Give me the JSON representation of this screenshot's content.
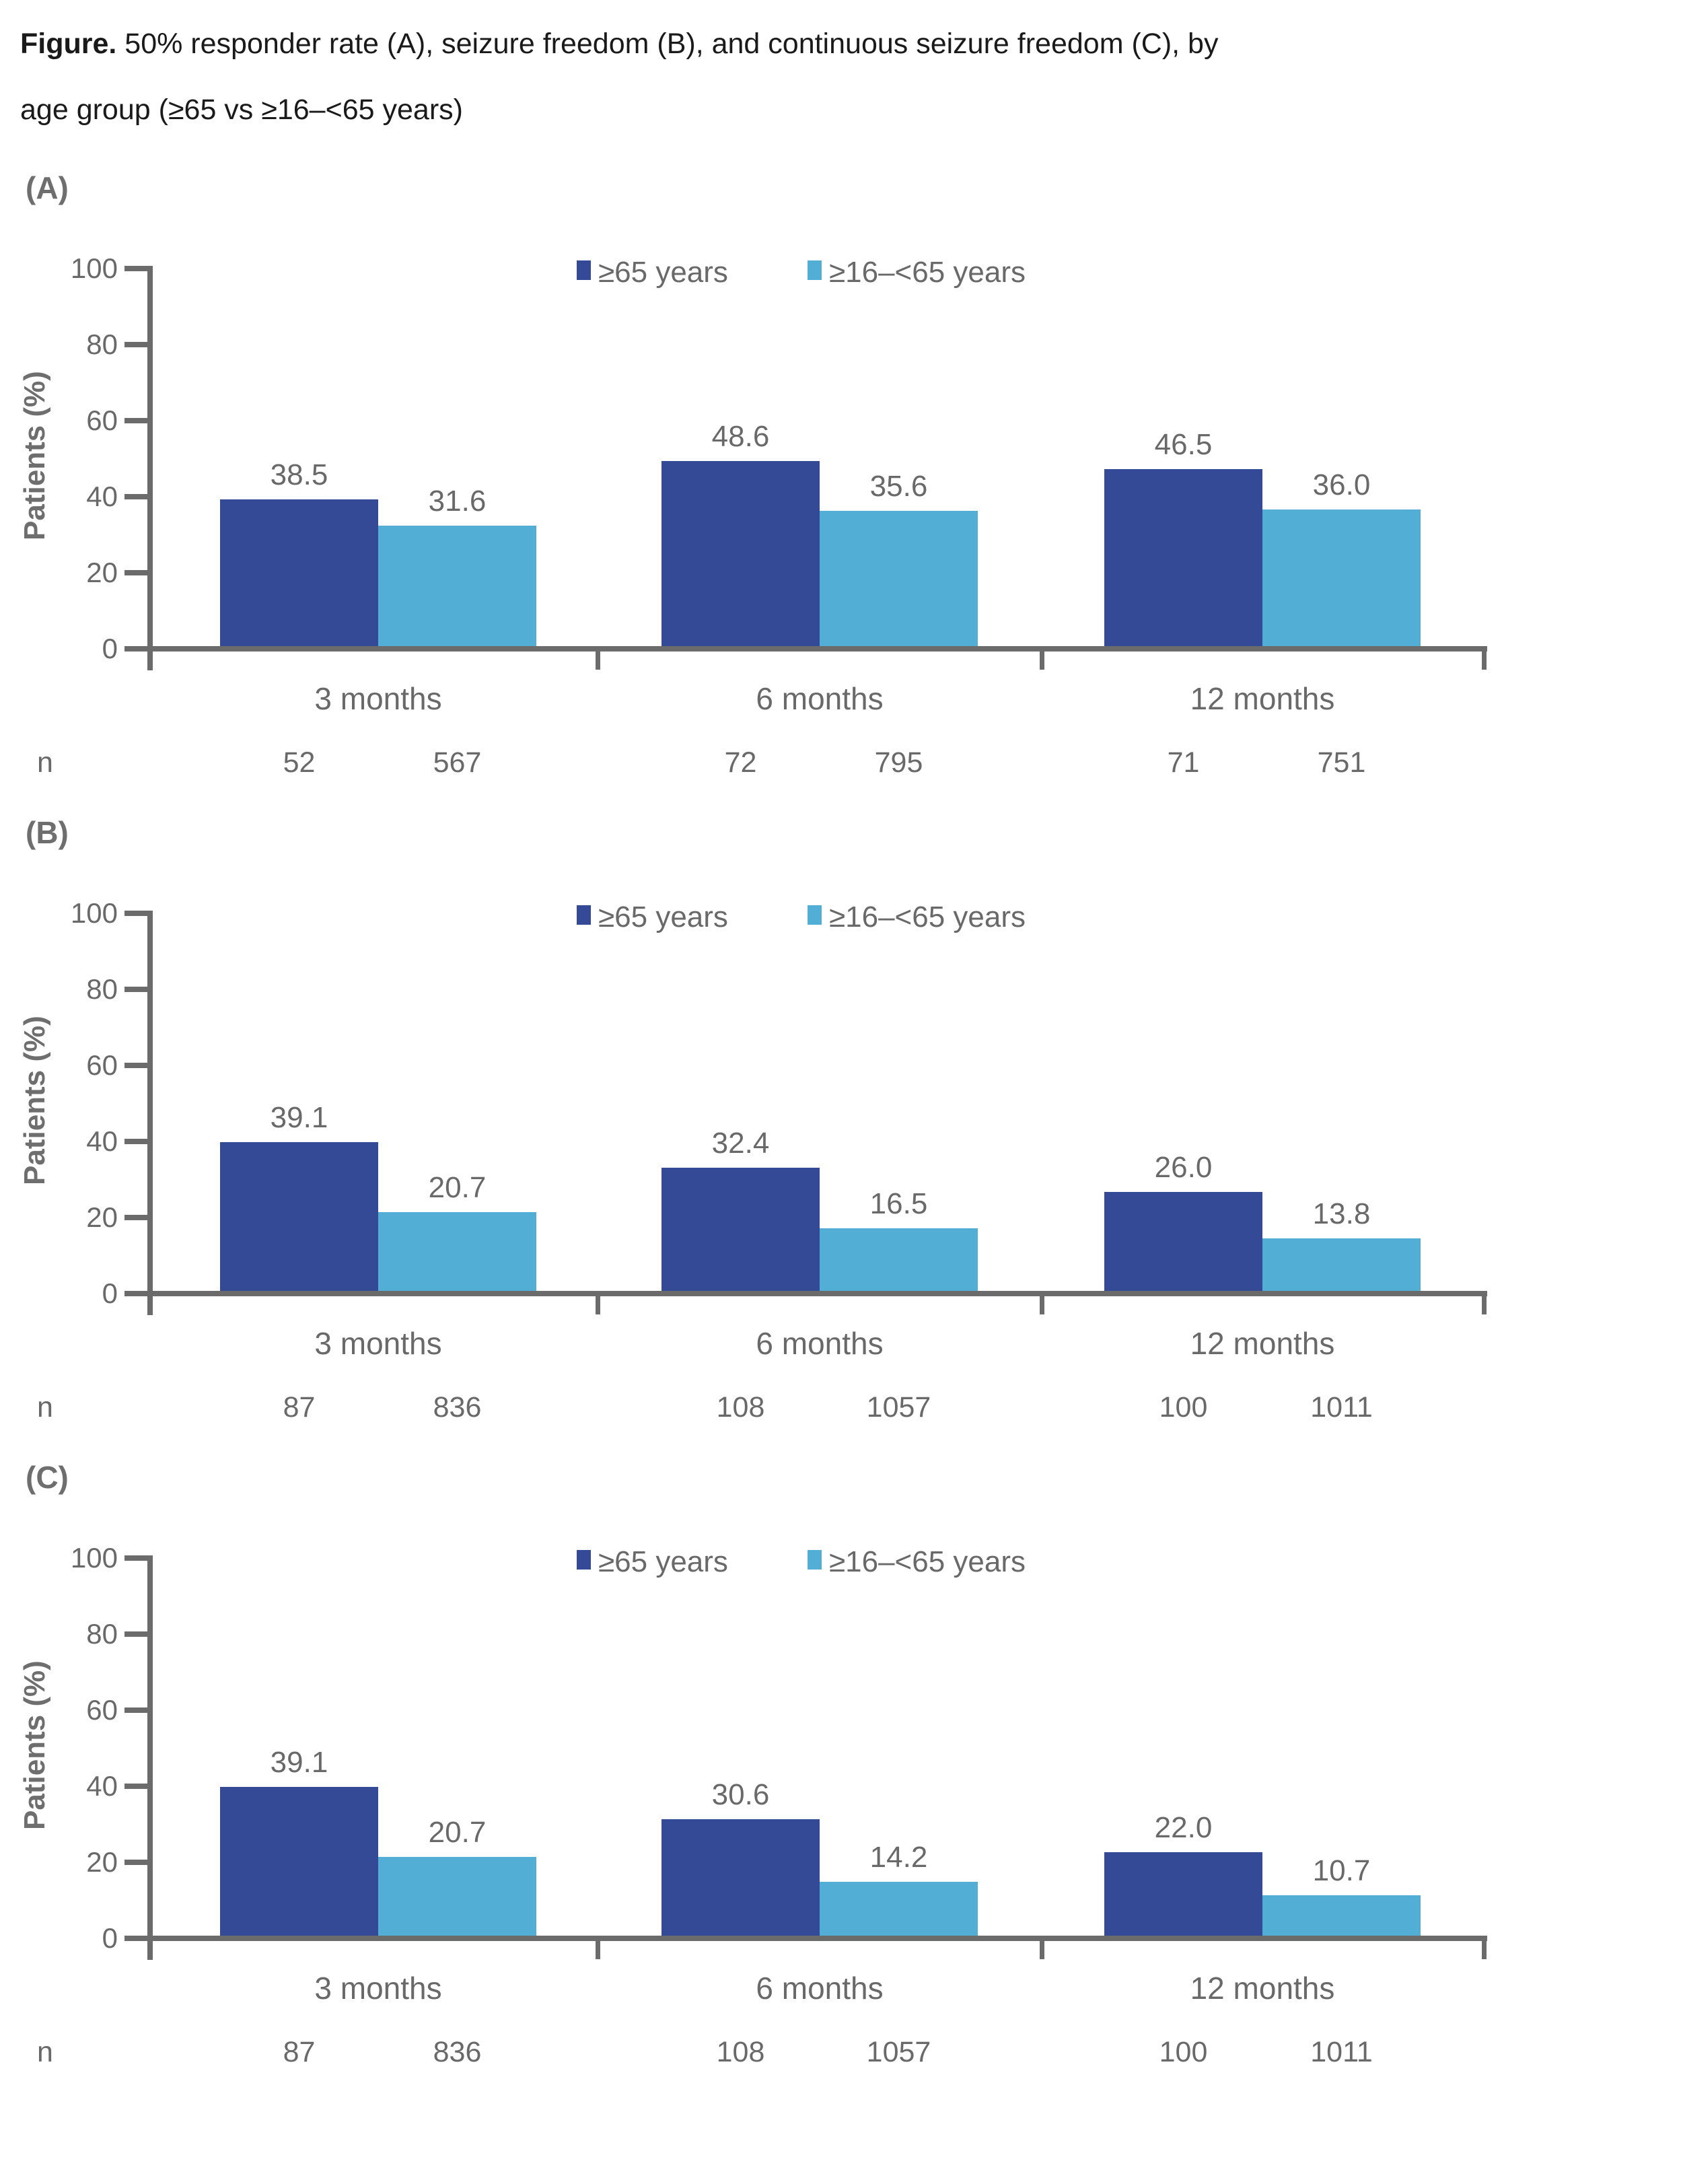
{
  "caption": {
    "prefix": "Figure.",
    "line1_rest": " 50% responder rate (A), seizure freedom (B), and continuous seizure freedom (C), by",
    "line2": "age group (≥65 vs ≥16–<65 years)"
  },
  "colors": {
    "age_ge65": "#344A96",
    "age_16_to_65": "#52AED4",
    "text_gray": "#696969",
    "axis_gray": "#6B6B6B"
  },
  "axis": {
    "ylabel": "Patients (%)",
    "n_row_label": "n"
  },
  "legend": {
    "items": [
      {
        "label": "≥65 years",
        "color": "#344A96"
      },
      {
        "label": "≥16–<65 years",
        "color": "#52AED4"
      }
    ]
  },
  "chart_data": [
    {
      "type": "bar",
      "panel_label": "(A)",
      "title": "50% responder rate",
      "categories": [
        "3 months",
        "6 months",
        "12 months"
      ],
      "ylabel": "Patients (%)",
      "ylim": [
        0,
        100
      ],
      "yticks": [
        0,
        20,
        40,
        60,
        80,
        100
      ],
      "grid": false,
      "legend_position": "top",
      "series": [
        {
          "name": "≥65 years",
          "color": "#344A96",
          "values": [
            38.5,
            48.6,
            46.5
          ],
          "value_labels": [
            "38.5",
            "48.6",
            "46.5"
          ],
          "n": [
            "52",
            "72",
            "71"
          ]
        },
        {
          "name": "≥16–<65 years",
          "color": "#52AED4",
          "values": [
            31.6,
            35.6,
            36.0
          ],
          "value_labels": [
            "31.6",
            "35.6",
            "36.0"
          ],
          "n": [
            "567",
            "795",
            "751"
          ]
        }
      ]
    },
    {
      "type": "bar",
      "panel_label": "(B)",
      "title": "seizure freedom",
      "categories": [
        "3 months",
        "6 months",
        "12 months"
      ],
      "ylabel": "Patients (%)",
      "ylim": [
        0,
        100
      ],
      "yticks": [
        0,
        20,
        40,
        60,
        80,
        100
      ],
      "grid": false,
      "legend_position": "top",
      "series": [
        {
          "name": "≥65 years",
          "color": "#344A96",
          "values": [
            39.1,
            32.4,
            26.0
          ],
          "value_labels": [
            "39.1",
            "32.4",
            "26.0"
          ],
          "n": [
            "87",
            "108",
            "100"
          ]
        },
        {
          "name": "≥16–<65 years",
          "color": "#52AED4",
          "values": [
            20.7,
            16.5,
            13.8
          ],
          "value_labels": [
            "20.7",
            "16.5",
            "13.8"
          ],
          "n": [
            "836",
            "1057",
            "1011"
          ]
        }
      ]
    },
    {
      "type": "bar",
      "panel_label": "(C)",
      "title": "continuous seizure freedom",
      "categories": [
        "3 months",
        "6 months",
        "12 months"
      ],
      "ylabel": "Patients (%)",
      "ylim": [
        0,
        100
      ],
      "yticks": [
        0,
        20,
        40,
        60,
        80,
        100
      ],
      "grid": false,
      "legend_position": "top",
      "series": [
        {
          "name": "≥65 years",
          "color": "#344A96",
          "values": [
            39.1,
            30.6,
            22.0
          ],
          "value_labels": [
            "39.1",
            "30.6",
            "22.0"
          ],
          "n": [
            "87",
            "108",
            "100"
          ]
        },
        {
          "name": "≥16–<65 years",
          "color": "#52AED4",
          "values": [
            20.7,
            14.2,
            10.7
          ],
          "value_labels": [
            "20.7",
            "14.2",
            "10.7"
          ],
          "n": [
            "836",
            "1057",
            "1011"
          ]
        }
      ]
    }
  ]
}
